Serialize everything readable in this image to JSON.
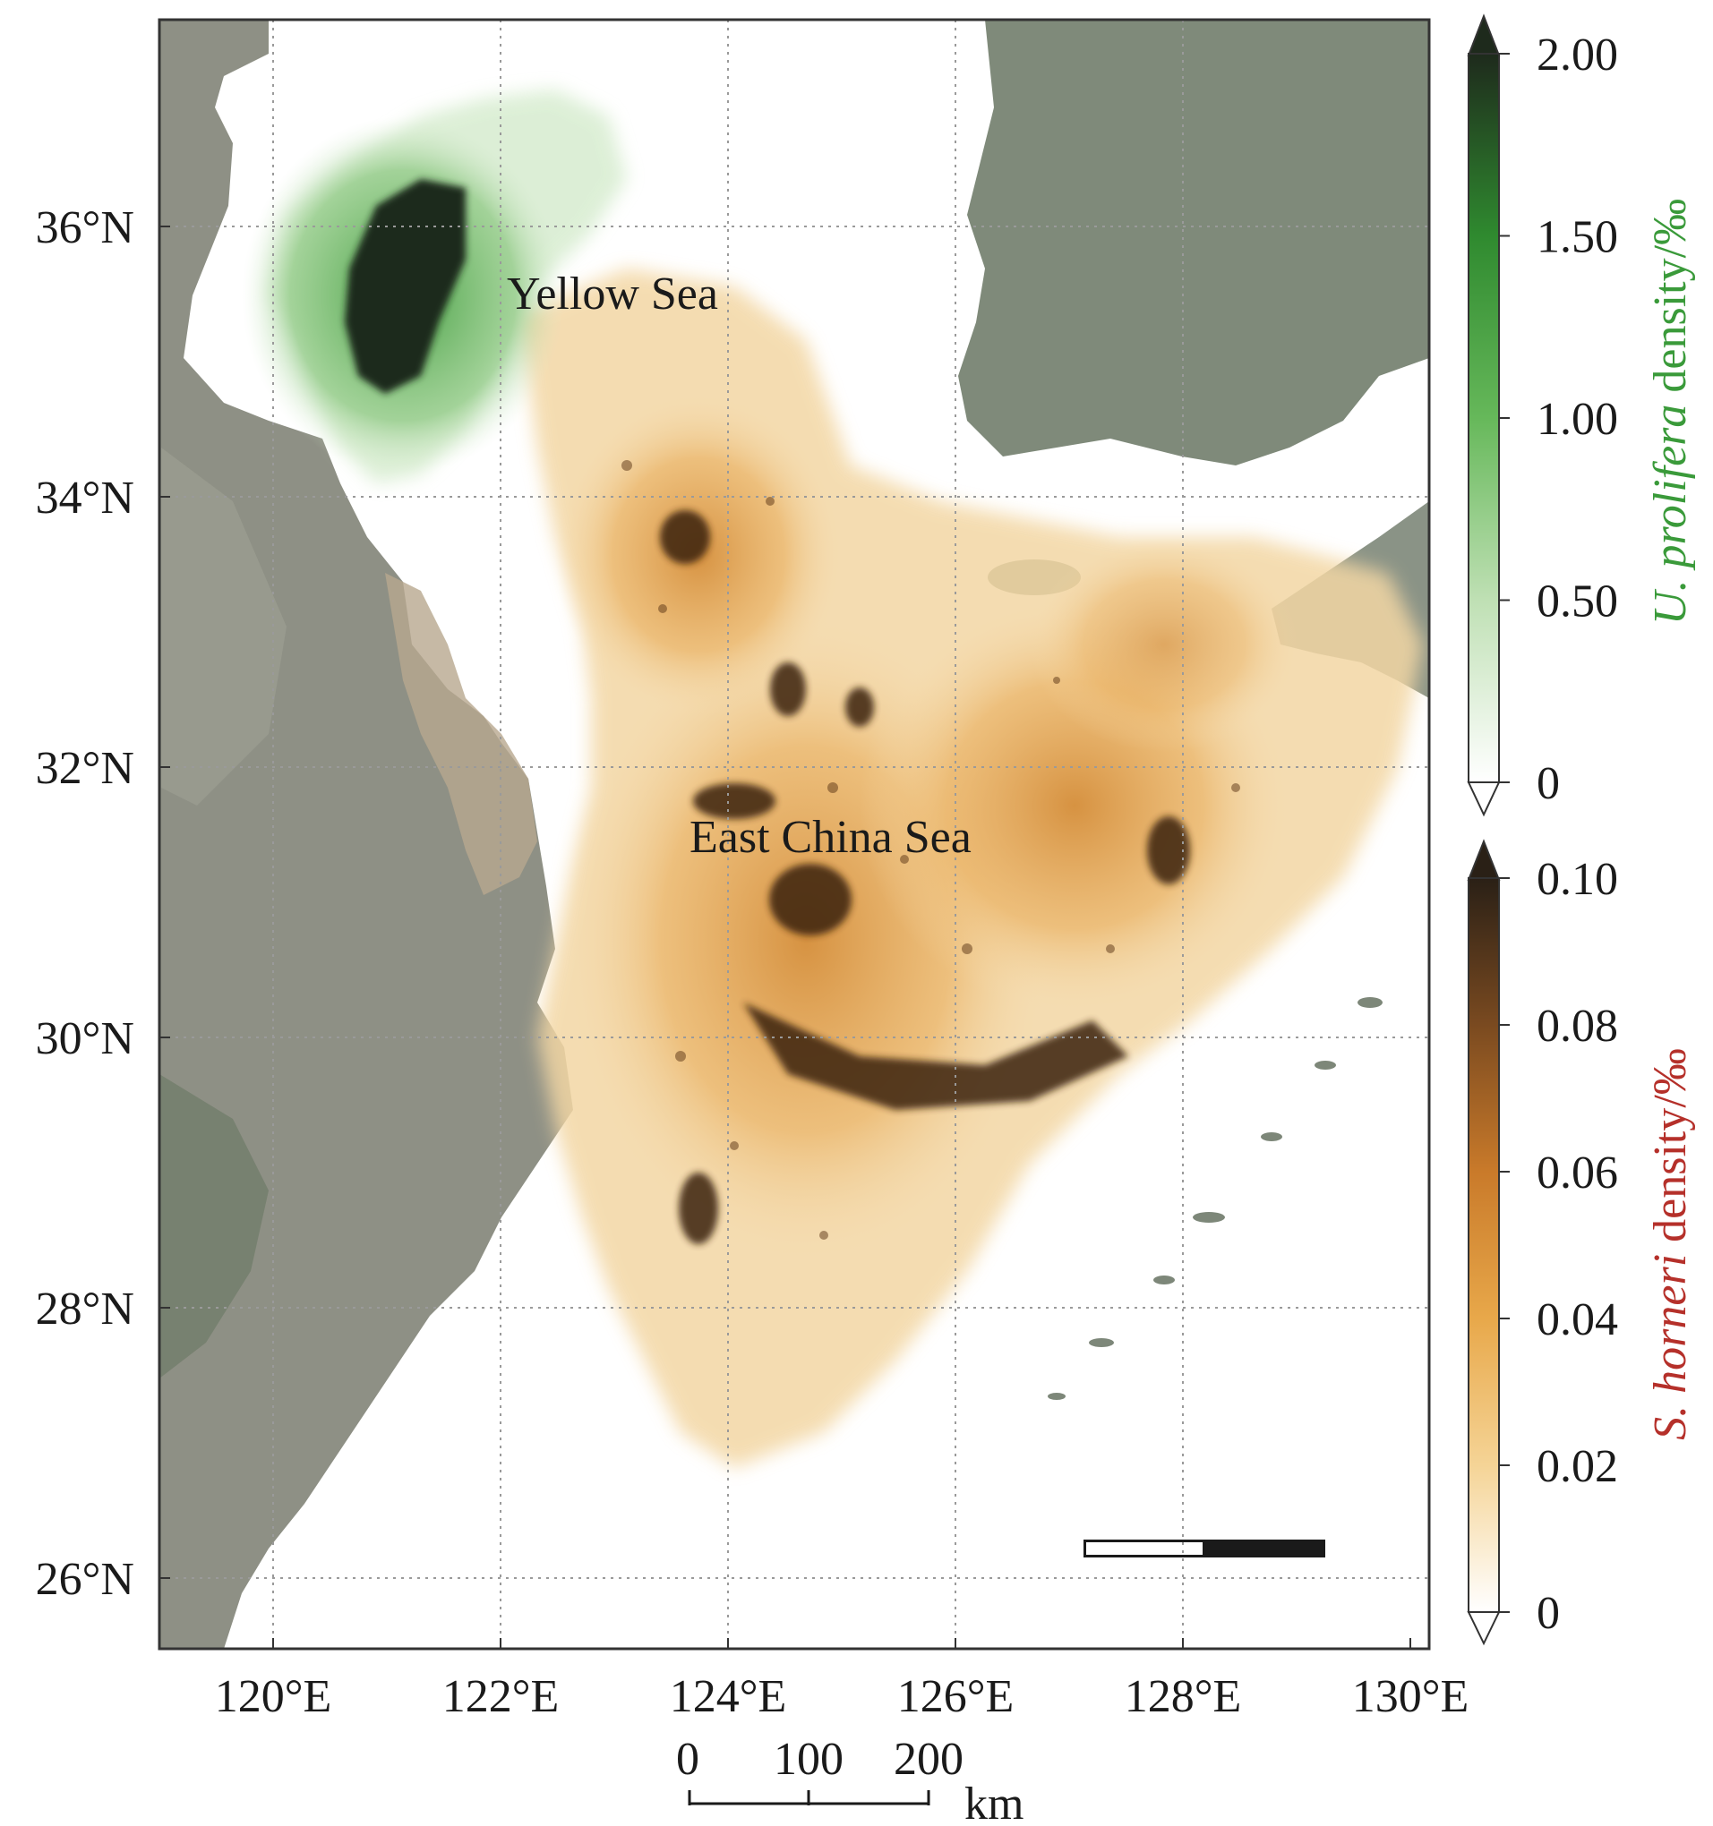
{
  "map": {
    "lon_ticks": [
      "120°E",
      "122°E",
      "124°E",
      "126°E",
      "128°E",
      "130°E"
    ],
    "lat_ticks": [
      "36°N",
      "34°N",
      "32°N",
      "30°N",
      "28°N",
      "26°N"
    ],
    "sea_labels": {
      "yellow_sea": "Yellow Sea",
      "east_china_sea": "East China Sea"
    },
    "scale_bar": {
      "ticks": [
        "0",
        "100",
        "200"
      ],
      "unit": "km"
    }
  },
  "colorbars": {
    "u_prolifera": {
      "title_species": "U. prolifera",
      "title_rest": " density/‰",
      "title_color": "#3a9a3a",
      "ticks": [
        "2.00",
        "1.50",
        "1.00",
        "0.50",
        "0"
      ],
      "colors": [
        "#1e2a1c",
        "#2f8a2f",
        "#66b85a",
        "#bfe0b4",
        "#ffffff"
      ]
    },
    "s_horneri": {
      "title_species": "S. horneri",
      "title_rest": " density/‰",
      "title_color": "#b5302a",
      "ticks": [
        "0.10",
        "0.08",
        "0.06",
        "0.04",
        "0.02",
        "0"
      ],
      "colors": [
        "#2a2016",
        "#7a4a20",
        "#c97a2a",
        "#e8a84a",
        "#f5d496",
        "#ffffff"
      ]
    }
  },
  "colors": {
    "land": "#8f9186",
    "land_dark": "#6f766a",
    "ulva_dark": "#1f2a1b",
    "ulva_green": "#3c9a3a",
    "sargassum_light": "#f1c57e",
    "sargassum_mid": "#d89a45",
    "sargassum_dark": "#3a2410",
    "grid": "#9a9a9a"
  }
}
